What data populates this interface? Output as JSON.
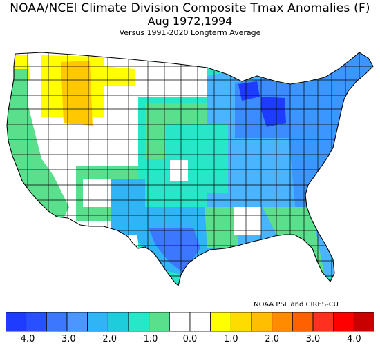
{
  "title": {
    "line1": "NOAA/NCEI Climate Division Composite Tmax Anomalies (F)",
    "line2": "Aug   1972,1994",
    "line3": "Versus 1991-2020 Longterm Average"
  },
  "credit": "NOAA PSL and CIRES-CU",
  "colorbar": {
    "colors": [
      "#1e3cff",
      "#2850ff",
      "#3c78ff",
      "#4b96ff",
      "#30b4f5",
      "#1ecddc",
      "#28e6c8",
      "#5ae08c",
      "#ffffff",
      "#ffffff",
      "#ffff00",
      "#ffdc00",
      "#ffbe00",
      "#ff8c00",
      "#ff6000",
      "#ff3020",
      "#ff0000",
      "#c80000"
    ],
    "ticks": [
      "-4.0",
      "-3.0",
      "-2.0",
      "-1.0",
      "0.0",
      "1.0",
      "2.0",
      "3.0",
      "4.0"
    ]
  },
  "map_regions": [
    {
      "name": "pacific-northwest-coast",
      "anomaly_class": "warm-1",
      "color": "#ffff00"
    },
    {
      "name": "idaho-montana-west",
      "anomaly_class": "warm-2",
      "color": "#ffc800"
    },
    {
      "name": "great-lakes-upper-michigan",
      "anomaly_class": "cold-4",
      "color": "#1e3cff"
    },
    {
      "name": "south-texas",
      "anomaly_class": "cold-3",
      "color": "#3c78ff"
    },
    {
      "name": "northeast",
      "anomaly_class": "cold-2",
      "color": "#4b96ff"
    },
    {
      "name": "central-plains",
      "anomaly_class": "cold-1",
      "color": "#28e6c8"
    },
    {
      "name": "great-basin",
      "anomaly_class": "neutral",
      "color": "#ffffff"
    }
  ]
}
